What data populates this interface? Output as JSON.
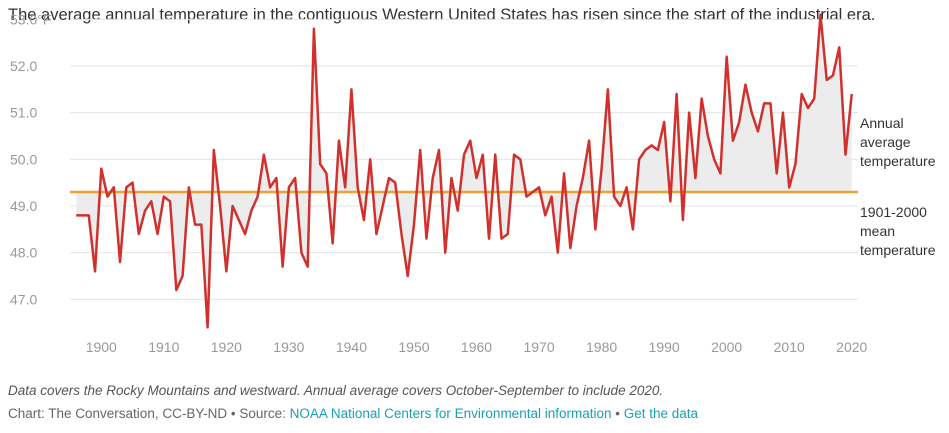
{
  "title": "The average annual temperature in the contiguous Western United States has risen since the start of the industrial era.",
  "footnote": "Data covers the Rocky Mountains and westward. Annual average covers October-September to include 2020.",
  "credit": {
    "prefix": "Chart: The Conversation, CC-BY-ND • Source: ",
    "source_link": "NOAA National Centers for Environmental information",
    "separator": " • ",
    "data_link": "Get the data"
  },
  "colors": {
    "series": "#d0312d",
    "mean": "#f0a030",
    "fill": "#ececec",
    "grid": "#e4e4e4"
  },
  "chart_data": {
    "type": "line",
    "title": "The average annual temperature in the contiguous Western United States has risen since the start of the industrial era.",
    "xlabel": "",
    "ylabel": "",
    "xlim": [
      1895,
      2021
    ],
    "ylim": [
      46.3,
      53.2
    ],
    "grid": true,
    "y_ticks": [
      {
        "value": 53.0,
        "label": "53.0°F"
      },
      {
        "value": 52.0,
        "label": "52.0"
      },
      {
        "value": 51.0,
        "label": "51.0"
      },
      {
        "value": 50.0,
        "label": "50.0"
      },
      {
        "value": 49.0,
        "label": "49.0"
      },
      {
        "value": 48.0,
        "label": "48.0"
      },
      {
        "value": 47.0,
        "label": "47.0"
      }
    ],
    "x_ticks": [
      1900,
      1910,
      1920,
      1930,
      1940,
      1950,
      1960,
      1970,
      1980,
      1990,
      2000,
      2010,
      2020
    ],
    "series": [
      {
        "name": "Annual average temperature",
        "x": [
          1896,
          1897,
          1898,
          1899,
          1900,
          1901,
          1902,
          1903,
          1904,
          1905,
          1906,
          1907,
          1908,
          1909,
          1910,
          1911,
          1912,
          1913,
          1914,
          1915,
          1916,
          1917,
          1918,
          1919,
          1920,
          1921,
          1922,
          1923,
          1924,
          1925,
          1926,
          1927,
          1928,
          1929,
          1930,
          1931,
          1932,
          1933,
          1934,
          1935,
          1936,
          1937,
          1938,
          1939,
          1940,
          1941,
          1942,
          1943,
          1944,
          1945,
          1946,
          1947,
          1948,
          1949,
          1950,
          1951,
          1952,
          1953,
          1954,
          1955,
          1956,
          1957,
          1958,
          1959,
          1960,
          1961,
          1962,
          1963,
          1964,
          1965,
          1966,
          1967,
          1968,
          1969,
          1970,
          1971,
          1972,
          1973,
          1974,
          1975,
          1976,
          1977,
          1978,
          1979,
          1980,
          1981,
          1982,
          1983,
          1984,
          1985,
          1986,
          1987,
          1988,
          1989,
          1990,
          1991,
          1992,
          1993,
          1994,
          1995,
          1996,
          1997,
          1998,
          1999,
          2000,
          2001,
          2002,
          2003,
          2004,
          2005,
          2006,
          2007,
          2008,
          2009,
          2010,
          2011,
          2012,
          2013,
          2014,
          2015,
          2016,
          2017,
          2018,
          2019,
          2020
        ],
        "values": [
          48.8,
          48.8,
          48.8,
          47.6,
          49.8,
          49.2,
          49.4,
          47.8,
          49.4,
          49.5,
          48.4,
          48.9,
          49.1,
          48.4,
          49.2,
          49.1,
          47.2,
          47.5,
          49.4,
          48.6,
          48.6,
          46.4,
          50.2,
          49.0,
          47.6,
          49.0,
          48.7,
          48.4,
          48.9,
          49.2,
          50.1,
          49.4,
          49.6,
          47.7,
          49.4,
          49.6,
          48.0,
          47.7,
          52.8,
          49.9,
          49.7,
          48.2,
          50.4,
          49.4,
          51.5,
          49.4,
          48.7,
          50.0,
          48.4,
          49.0,
          49.6,
          49.5,
          48.4,
          47.5,
          48.6,
          50.2,
          48.3,
          49.6,
          50.2,
          48.0,
          49.6,
          48.9,
          50.1,
          50.4,
          49.6,
          50.1,
          48.3,
          50.1,
          48.3,
          48.4,
          50.1,
          50.0,
          49.2,
          49.3,
          49.4,
          48.8,
          49.2,
          48.0,
          49.7,
          48.1,
          49.0,
          49.6,
          50.4,
          48.5,
          49.8,
          51.5,
          49.2,
          49.0,
          49.4,
          48.5,
          50.0,
          50.2,
          50.3,
          50.2,
          50.8,
          49.1,
          51.4,
          48.7,
          51.0,
          49.6,
          51.3,
          50.5,
          50.0,
          49.7,
          52.2,
          50.4,
          50.8,
          51.6,
          51.0,
          50.6,
          51.2,
          51.2,
          49.7,
          51.0,
          49.4,
          49.9,
          51.4,
          51.1,
          51.3,
          53.1,
          51.7,
          51.8,
          52.4,
          50.1,
          51.4
        ]
      },
      {
        "name": "1901-2000 mean temperature",
        "value": 49.3
      }
    ],
    "annotations": [
      "Annual average temperature",
      "1901-2000 mean temperature"
    ],
    "labels": {
      "annual": [
        "Annual",
        "average",
        "temperature"
      ],
      "mean": [
        "1901-2000",
        "mean",
        "temperature"
      ]
    }
  }
}
